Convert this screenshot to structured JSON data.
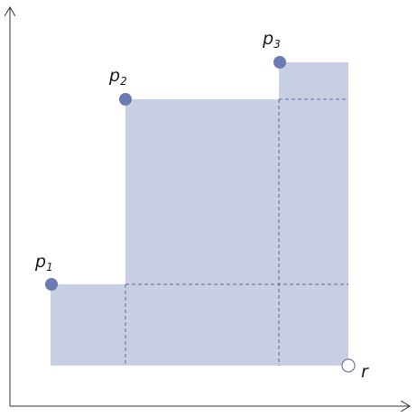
{
  "diagram": {
    "points": [
      {
        "id": "p1",
        "base": "p",
        "subscript": "1"
      },
      {
        "id": "p2",
        "base": "p",
        "subscript": "2"
      },
      {
        "id": "p3",
        "base": "p",
        "subscript": "3"
      }
    ],
    "reference_point": {
      "label": "r"
    },
    "colors": {
      "region_fill": "#c8cfe3",
      "point_fill": "#6b7bb3",
      "dashed_line": "#5a6aa8",
      "axis": "#333333",
      "reference_fill": "#ffffff",
      "reference_stroke": "#6b7bb3"
    }
  }
}
